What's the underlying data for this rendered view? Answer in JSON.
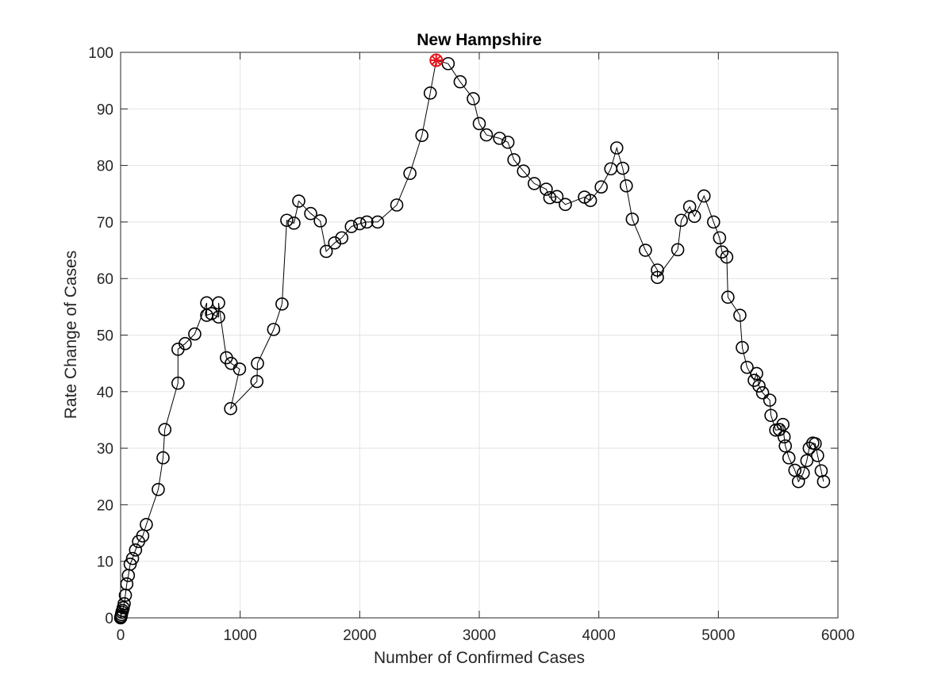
{
  "chart_data": {
    "type": "line",
    "title": "New Hampshire",
    "xlabel": "Number of Confirmed Cases",
    "ylabel": "Rate Change of Cases",
    "xlim": [
      0,
      6000
    ],
    "ylim": [
      0,
      100
    ],
    "xticks": [
      0,
      1000,
      2000,
      3000,
      4000,
      5000,
      6000
    ],
    "yticks": [
      0,
      10,
      20,
      30,
      40,
      50,
      60,
      70,
      80,
      90,
      100
    ],
    "grid": true,
    "marker": "circle",
    "line_color": "#000000",
    "highlight_color": "#e8141c",
    "series": [
      {
        "points": [
          [
            0,
            0
          ],
          [
            2,
            0.1
          ],
          [
            4,
            0.3
          ],
          [
            7,
            0.6
          ],
          [
            11,
            1
          ],
          [
            16,
            1.3
          ],
          [
            22,
            1.8
          ],
          [
            30,
            2.5
          ],
          [
            40,
            4
          ],
          [
            52,
            6
          ],
          [
            65,
            7.5
          ],
          [
            80,
            9.5
          ],
          [
            100,
            10.5
          ],
          [
            125,
            12
          ],
          [
            150,
            13.5
          ],
          [
            185,
            14.5
          ],
          [
            215,
            16.5
          ],
          [
            315,
            22.7
          ],
          [
            355,
            28.3
          ],
          [
            370,
            33.3
          ],
          [
            480,
            41.5
          ],
          [
            480,
            47.5
          ],
          [
            540,
            48.5
          ],
          [
            620,
            50.2
          ],
          [
            720,
            55.7
          ],
          [
            720,
            53.5
          ],
          [
            760,
            53.8
          ],
          [
            820,
            53.2
          ],
          [
            820,
            55.7
          ],
          [
            885,
            46
          ],
          [
            925,
            45
          ],
          [
            995,
            44
          ],
          [
            920,
            37
          ],
          [
            1140,
            41.8
          ],
          [
            1145,
            45
          ],
          [
            1280,
            51
          ],
          [
            1350,
            55.5
          ],
          [
            1390,
            70.3
          ],
          [
            1450,
            69.8
          ],
          [
            1490,
            73.7
          ],
          [
            1590,
            71.5
          ],
          [
            1670,
            70.2
          ],
          [
            1720,
            64.8
          ],
          [
            1790,
            66.3
          ],
          [
            1850,
            67.2
          ],
          [
            1930,
            69.2
          ],
          [
            2000,
            69.7
          ],
          [
            2060,
            70
          ],
          [
            2150,
            70
          ],
          [
            2310,
            73
          ],
          [
            2420,
            78.6
          ],
          [
            2520,
            85.3
          ],
          [
            2590,
            92.8
          ],
          [
            2640,
            98.6
          ],
          [
            2740,
            98
          ],
          [
            2840,
            94.8
          ],
          [
            2950,
            91.8
          ],
          [
            3000,
            87.4
          ],
          [
            3060,
            85.4
          ],
          [
            3170,
            84.8
          ],
          [
            3240,
            84.1
          ],
          [
            3290,
            81
          ],
          [
            3370,
            79
          ],
          [
            3460,
            76.8
          ],
          [
            3560,
            75.8
          ],
          [
            3590,
            74.3
          ],
          [
            3650,
            74.5
          ],
          [
            3720,
            73.1
          ],
          [
            3880,
            74.4
          ],
          [
            3930,
            73.8
          ],
          [
            4020,
            76.2
          ],
          [
            4100,
            79.4
          ],
          [
            4150,
            83.1
          ],
          [
            4200,
            79.5
          ],
          [
            4230,
            76.4
          ],
          [
            4280,
            70.5
          ],
          [
            4390,
            65
          ],
          [
            4490,
            61.5
          ],
          [
            4490,
            60.2
          ],
          [
            4660,
            65.1
          ],
          [
            4690,
            70.3
          ],
          [
            4760,
            72.7
          ],
          [
            4800,
            71
          ],
          [
            4880,
            74.6
          ],
          [
            4960,
            70
          ],
          [
            5010,
            67.2
          ],
          [
            5030,
            64.7
          ],
          [
            5070,
            63.8
          ],
          [
            5080,
            56.7
          ],
          [
            5180,
            53.5
          ],
          [
            5200,
            47.8
          ],
          [
            5240,
            44.3
          ],
          [
            5300,
            42
          ],
          [
            5320,
            43.2
          ],
          [
            5340,
            41
          ],
          [
            5370,
            39.8
          ],
          [
            5430,
            38.5
          ],
          [
            5440,
            35.8
          ],
          [
            5480,
            33.2
          ],
          [
            5510,
            33.3
          ],
          [
            5540,
            34.2
          ],
          [
            5550,
            32
          ],
          [
            5560,
            30.4
          ],
          [
            5590,
            28.3
          ],
          [
            5640,
            26.1
          ],
          [
            5670,
            24.1
          ],
          [
            5710,
            25.6
          ],
          [
            5740,
            27.8
          ],
          [
            5760,
            30
          ],
          [
            5790,
            30.9
          ],
          [
            5810,
            30.8
          ],
          [
            5830,
            28.7
          ],
          [
            5860,
            26
          ],
          [
            5880,
            24.1
          ]
        ],
        "highlight_point": [
          2640,
          98.6
        ]
      }
    ]
  }
}
